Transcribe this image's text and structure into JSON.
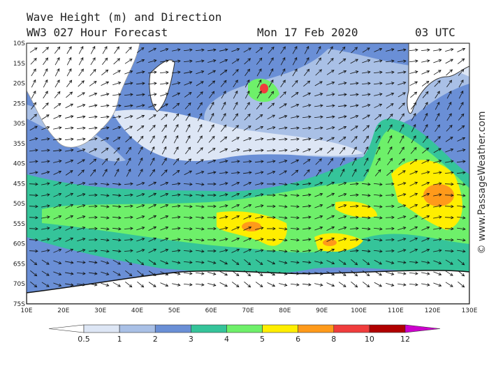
{
  "header": {
    "title": "Wave Height (m) and Direction",
    "subtitle": "WW3 027 Hour Forecast",
    "date": "Mon 17 Feb 2020",
    "time": "03 UTC"
  },
  "lat_labels": [
    "10S",
    "15S",
    "20S",
    "25S",
    "30S",
    "35S",
    "40S",
    "45S",
    "50S",
    "55S",
    "60S",
    "65S",
    "70S",
    "75S"
  ],
  "lon_labels": [
    "10E",
    "20E",
    "30E",
    "40E",
    "50E",
    "60E",
    "70E",
    "80E",
    "90E",
    "100E",
    "110E",
    "120E",
    "130E"
  ],
  "legend": {
    "labels": [
      "0.5",
      "1",
      "2",
      "3",
      "4",
      "5",
      "6",
      "8",
      "10",
      "12"
    ],
    "colors": [
      "#ffffff",
      "#dde6f5",
      "#a9c0e6",
      "#6a8fd6",
      "#35c49a",
      "#6ef06a",
      "#ffee00",
      "#ff9a1a",
      "#f03c3c",
      "#b00000",
      "#cc00cc"
    ]
  },
  "credit": "© www.PassageWeather.com"
}
